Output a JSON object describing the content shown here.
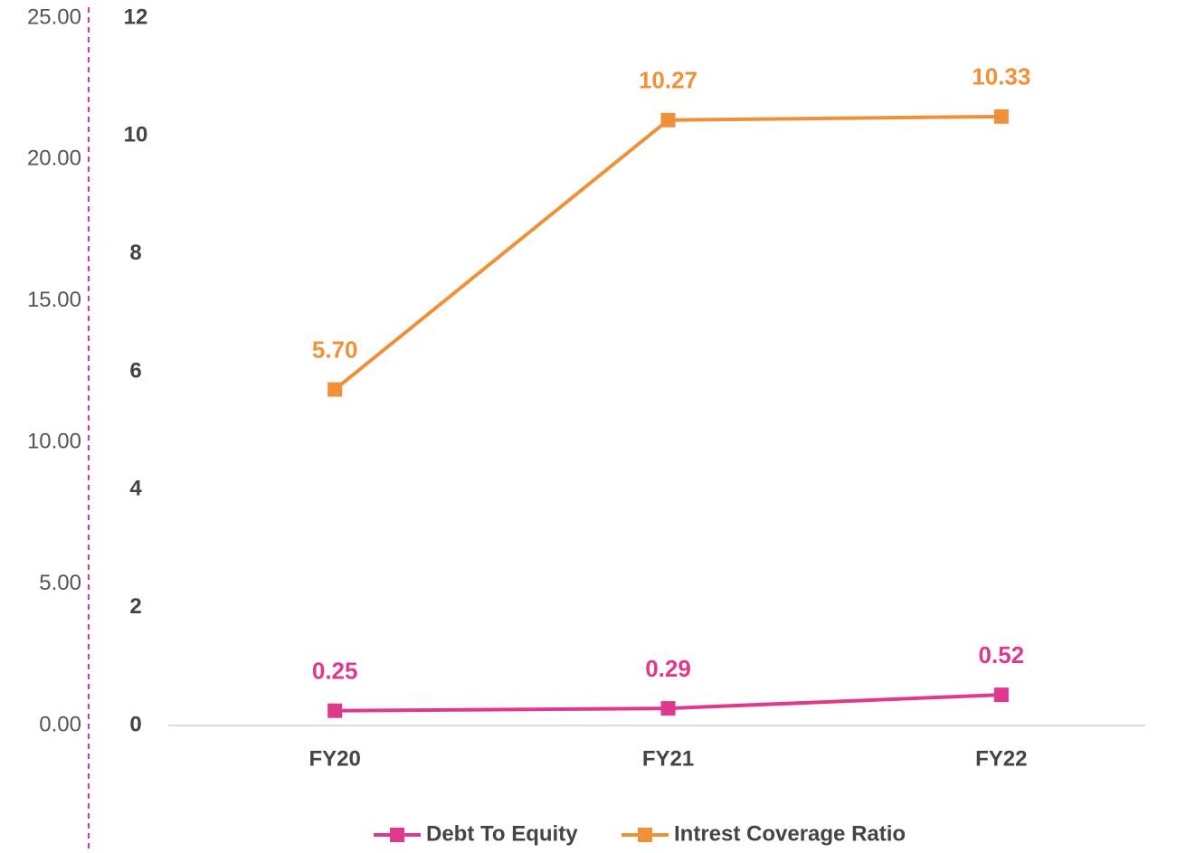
{
  "chart_data": {
    "type": "line",
    "categories": [
      "FY20",
      "FY21",
      "FY22"
    ],
    "series": [
      {
        "name": "Debt To Equity",
        "color": "#e0388c",
        "values": [
          0.25,
          0.29,
          0.52
        ]
      },
      {
        "name": "Intrest Coverage Ratio",
        "color": "#f0913a",
        "values": [
          5.7,
          10.27,
          10.33
        ],
        "value_labels": [
          "5.70",
          "10.27",
          "10.33"
        ]
      }
    ],
    "ylim": [
      0,
      12
    ],
    "yticks": [
      0,
      2,
      4,
      6,
      8,
      10,
      12
    ],
    "y2lim": [
      0,
      25
    ],
    "y2ticks": [
      {
        "value": 0,
        "label": "0.00"
      },
      {
        "value": 5,
        "label": "5.00"
      },
      {
        "value": 10,
        "label": "10.00"
      },
      {
        "value": 15,
        "label": "15.00"
      },
      {
        "value": 20,
        "label": "20.00"
      },
      {
        "value": 25,
        "label": "25.00"
      }
    ],
    "legend": "bottom",
    "marker": "square"
  }
}
